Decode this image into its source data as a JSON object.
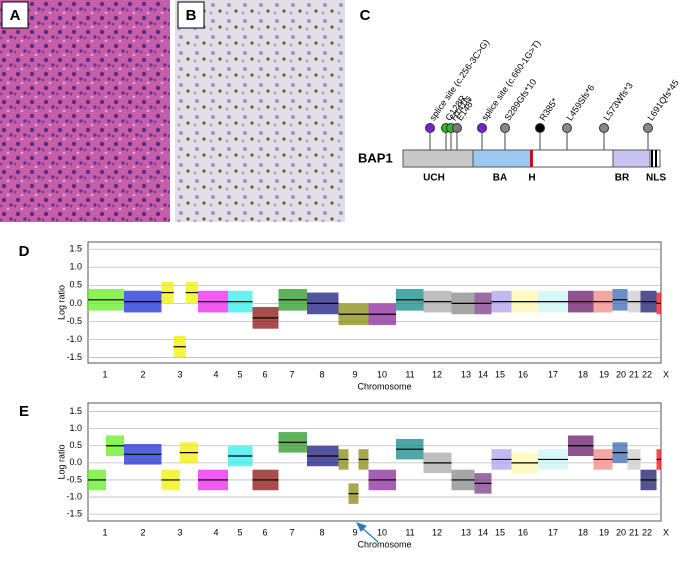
{
  "panels": {
    "a": "A",
    "b": "B",
    "c": "C",
    "d": "D",
    "e": "E"
  },
  "protein": {
    "name": "BAP1",
    "domains": [
      "UCH",
      "BA",
      "H",
      "BR",
      "NLS"
    ],
    "mutations": [
      {
        "label": "splice site (c.256-3C>G)",
        "color": "#7a1fd6"
      },
      {
        "label": "G128R",
        "color": "#2fb52f"
      },
      {
        "label": "H141fs",
        "color": "#2fb52f"
      },
      {
        "label": "E148*",
        "color": "#777777"
      },
      {
        "label": "splice site (c.660-1G>T)",
        "color": "#7a1fd6"
      },
      {
        "label": "S289Gfs*10",
        "color": "#888888"
      },
      {
        "label": "R385*",
        "color": "#000000"
      },
      {
        "label": "L459Sfs*6",
        "color": "#888888"
      },
      {
        "label": "L573Wfs*3",
        "color": "#888888"
      },
      {
        "label": "L691Qfs*45",
        "color": "#888888"
      }
    ]
  },
  "chromosomes": [
    "1",
    "2",
    "3",
    "4",
    "5",
    "6",
    "7",
    "8",
    "9",
    "10",
    "11",
    "12",
    "13",
    "14",
    "15",
    "16",
    "17",
    "18",
    "19",
    "20",
    "21",
    "22",
    "X"
  ],
  "chromosome_colors": [
    "#66ee22",
    "#1a2ed6",
    "#f2f200",
    "#ee22ee",
    "#33eeee",
    "#8b1010",
    "#2a9a2a",
    "#1a1a80",
    "#8a8a10",
    "#8a2a9a",
    "#108a8a",
    "#aaaaaa",
    "#888888",
    "#7a3a8a",
    "#b0a0ee",
    "#fff7b0",
    "#c8f5f5",
    "#6a1a6a",
    "#f08a80",
    "#3a6ab0",
    "#cccccc",
    "#1a1a6a",
    "#ee1111"
  ],
  "y_label": "Log ratio",
  "x_label": "Chromosome",
  "plots": [
    {
      "ylim": [
        -1.65,
        1.7
      ],
      "yticks": [
        -1.5,
        -1.0,
        -0.5,
        0.0,
        0.5,
        1.0,
        1.5
      ],
      "ytick_labels": [
        "-1.5",
        "-1.0",
        "-0.5",
        "0.0",
        "0.5",
        "1.0",
        "1.5"
      ],
      "segments": [
        [
          0.1
        ],
        [
          0.05
        ],
        [
          0.3,
          -1.2,
          0.3
        ],
        [
          0.05
        ],
        [
          0.05
        ],
        [
          -0.4
        ],
        [
          0.1
        ],
        [
          0.0
        ],
        [
          -0.3
        ],
        [
          -0.3
        ],
        [
          0.1
        ],
        [
          0.05
        ],
        [
          0.0
        ],
        [
          0.0
        ],
        [
          0.05
        ],
        [
          0.05
        ],
        [
          0.05
        ],
        [
          0.05
        ],
        [
          0.05
        ],
        [
          0.1
        ],
        [
          0.05
        ],
        [
          0.05
        ],
        [
          0.0
        ]
      ]
    },
    {
      "ylim": [
        -1.7,
        1.75
      ],
      "yticks": [
        -1.5,
        -1.0,
        -0.5,
        0.0,
        0.5,
        1.0,
        1.5
      ],
      "ytick_labels": [
        "-1.5",
        "-1.0",
        "-0.5",
        "0.0",
        "0.5",
        "1.0",
        "1.5"
      ],
      "segments": [
        [
          -0.5,
          0.5
        ],
        [
          0.25
        ],
        [
          -0.5,
          0.3
        ],
        [
          -0.5
        ],
        [
          0.2
        ],
        [
          -0.5
        ],
        [
          0.6
        ],
        [
          0.2
        ],
        [
          0.1,
          -0.9,
          0.1
        ],
        [
          -0.5
        ],
        [
          0.4
        ],
        [
          0.0
        ],
        [
          -0.5
        ],
        [
          -0.6
        ],
        [
          0.1
        ],
        [
          0.0
        ],
        [
          0.1
        ],
        [
          0.5
        ],
        [
          0.1
        ],
        [
          0.3
        ],
        [
          0.1
        ],
        [
          -0.5
        ],
        [
          0.1
        ]
      ]
    }
  ]
}
